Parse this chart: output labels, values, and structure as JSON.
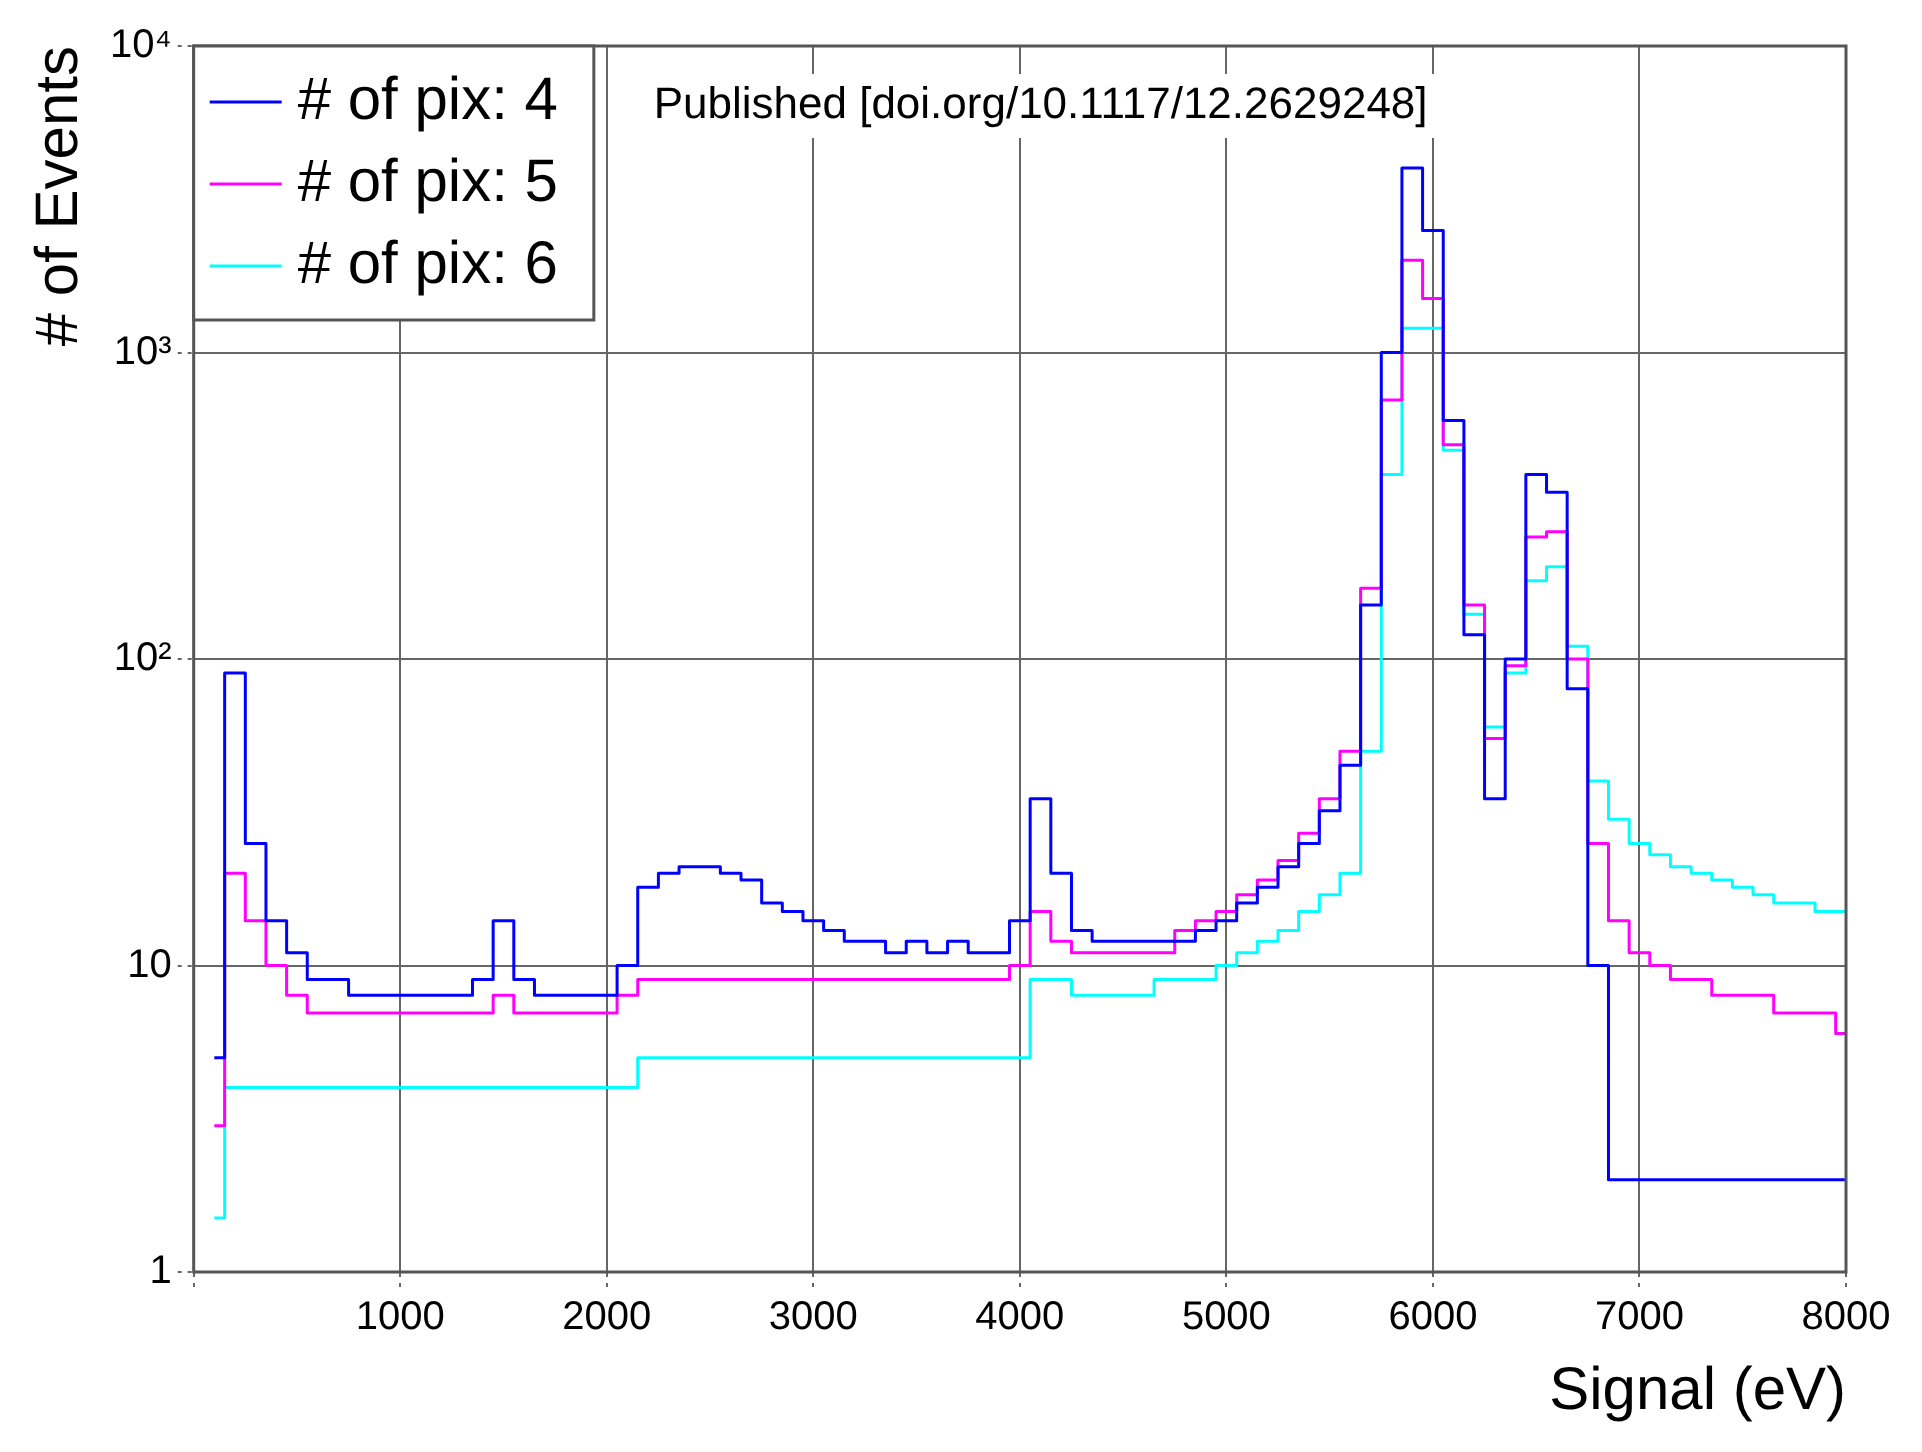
{
  "chart_data": {
    "type": "step",
    "xlabel": "Signal (eV)",
    "ylabel": "# of Events",
    "annotations": [
      "Published [doi.org/10.1117/12.2629248]"
    ],
    "x": [
      100,
      200,
      300,
      400,
      500,
      600,
      700,
      800,
      900,
      1000,
      1100,
      1200,
      1300,
      1400,
      1500,
      1600,
      1700,
      1800,
      1900,
      2000,
      2100,
      2200,
      2300,
      2400,
      2500,
      2600,
      2700,
      2800,
      2900,
      3000,
      3100,
      3200,
      3300,
      3400,
      3500,
      3600,
      3700,
      3800,
      3900,
      4000,
      4100,
      4200,
      4300,
      4400,
      4500,
      4600,
      4700,
      4800,
      4900,
      5000,
      5100,
      5200,
      5300,
      5400,
      5500,
      5600,
      5700,
      5800,
      5900,
      6000,
      6100,
      6200,
      6300,
      6400,
      6500,
      6600,
      6700,
      6800,
      6900,
      7000,
      7100,
      7200,
      7300,
      7400,
      7500,
      7600,
      7700,
      7800,
      7900,
      8000
    ],
    "series": [
      {
        "name": "# of pix: 4",
        "color": "#0000ff",
        "values": [
          5,
          90,
          25,
          14,
          11,
          9,
          9,
          8,
          8,
          8,
          8,
          8,
          8,
          9,
          14,
          9,
          8,
          8,
          8,
          8,
          10,
          18,
          20,
          21,
          21,
          20,
          19,
          16,
          15,
          14,
          13,
          12,
          12,
          11,
          12,
          11,
          12,
          11,
          11,
          14,
          35,
          20,
          13,
          12,
          12,
          12,
          12,
          12,
          13,
          14,
          16,
          18,
          21,
          25,
          32,
          45,
          150,
          1000,
          4000,
          2500,
          600,
          120,
          35,
          100,
          400,
          350,
          80,
          10,
          2,
          2,
          2,
          2,
          2,
          2,
          2,
          2,
          2,
          2,
          2,
          2
        ]
      },
      {
        "name": "# of pix: 5",
        "color": "#ff00ff",
        "values": [
          3,
          20,
          14,
          10,
          8,
          7,
          7,
          7,
          7,
          7,
          7,
          7,
          7,
          7,
          8,
          7,
          7,
          7,
          7,
          7,
          8,
          9,
          9,
          9,
          9,
          9,
          9,
          9,
          9,
          9,
          9,
          9,
          9,
          9,
          9,
          9,
          9,
          9,
          9,
          10,
          15,
          12,
          11,
          11,
          11,
          11,
          11,
          13,
          14,
          15,
          17,
          19,
          22,
          27,
          35,
          50,
          170,
          700,
          2000,
          1500,
          500,
          150,
          55,
          95,
          250,
          260,
          100,
          25,
          14,
          11,
          10,
          9,
          9,
          8,
          8,
          8,
          7,
          7,
          7,
          6
        ]
      },
      {
        "name": "# of pix: 6",
        "color": "#00ffff",
        "values": [
          1.5,
          4,
          4,
          4,
          4,
          4,
          4,
          4,
          4,
          4,
          4,
          4,
          4,
          4,
          4,
          4,
          4,
          4,
          4,
          4,
          4,
          5,
          5,
          5,
          5,
          5,
          5,
          5,
          5,
          5,
          5,
          5,
          5,
          5,
          5,
          5,
          5,
          5,
          5,
          5,
          9,
          9,
          8,
          8,
          8,
          8,
          9,
          9,
          9,
          10,
          11,
          12,
          13,
          15,
          17,
          20,
          50,
          400,
          1200,
          1200,
          480,
          140,
          60,
          90,
          180,
          200,
          110,
          40,
          30,
          25,
          23,
          21,
          20,
          19,
          18,
          17,
          16,
          16,
          15,
          15
        ]
      }
    ],
    "xlim": [
      0,
      8000
    ],
    "xticks": [
      {
        "value": 0,
        "label": null
      },
      1000,
      2000,
      3000,
      4000,
      5000,
      6000,
      7000,
      8000
    ],
    "ylim": [
      1,
      10000
    ],
    "yticks": [
      1,
      10,
      {
        "value": 100,
        "label": "10²"
      },
      {
        "value": 1000,
        "label": "10³"
      },
      {
        "value": 10000,
        "label": "10⁴"
      }
    ],
    "log": "y",
    "grid": true,
    "legend": "top left",
    "marker": "none",
    "line_style": "solid"
  }
}
